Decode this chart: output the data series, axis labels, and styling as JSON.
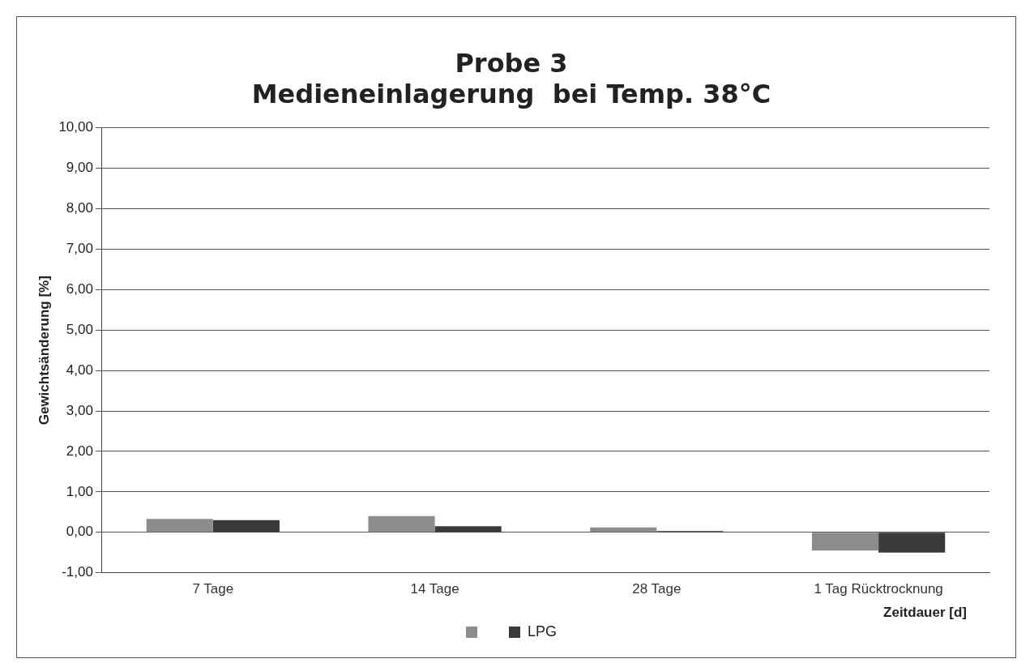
{
  "chart_data": {
    "type": "bar",
    "title": "Probe 3",
    "subtitle": "Medieneinlagerung  bei Temp. 38°C",
    "xlabel": "Zeitdauer [d]",
    "ylabel": "Gewichtsänderung [%]",
    "categories": [
      "7 Tage",
      "14 Tage",
      "28 Tage",
      "1 Tag Rücktrocknung"
    ],
    "series": [
      {
        "color": "#8c8c8c",
        "values": [
          0.33,
          0.4,
          0.12,
          -0.45
        ]
      },
      {
        "name": "LPG",
        "color": "#3a3a3a",
        "values": [
          0.3,
          0.15,
          0.03,
          -0.5
        ]
      }
    ],
    "ylim": [
      -1,
      10
    ],
    "yticks": [
      {
        "value": -1,
        "label": "-1,00"
      },
      {
        "value": 0,
        "label": "0,00"
      },
      {
        "value": 1,
        "label": "1,00"
      },
      {
        "value": 2,
        "label": "2,00"
      },
      {
        "value": 3,
        "label": "3,00"
      },
      {
        "value": 4,
        "label": "4,00"
      },
      {
        "value": 5,
        "label": "5,00"
      },
      {
        "value": 6,
        "label": "6,00"
      },
      {
        "value": 7,
        "label": "7,00"
      },
      {
        "value": 8,
        "label": "8,00"
      },
      {
        "value": 9,
        "label": "9,00"
      },
      {
        "value": 10,
        "label": "10,00"
      }
    ],
    "grid": "y",
    "legend": "bottom"
  }
}
